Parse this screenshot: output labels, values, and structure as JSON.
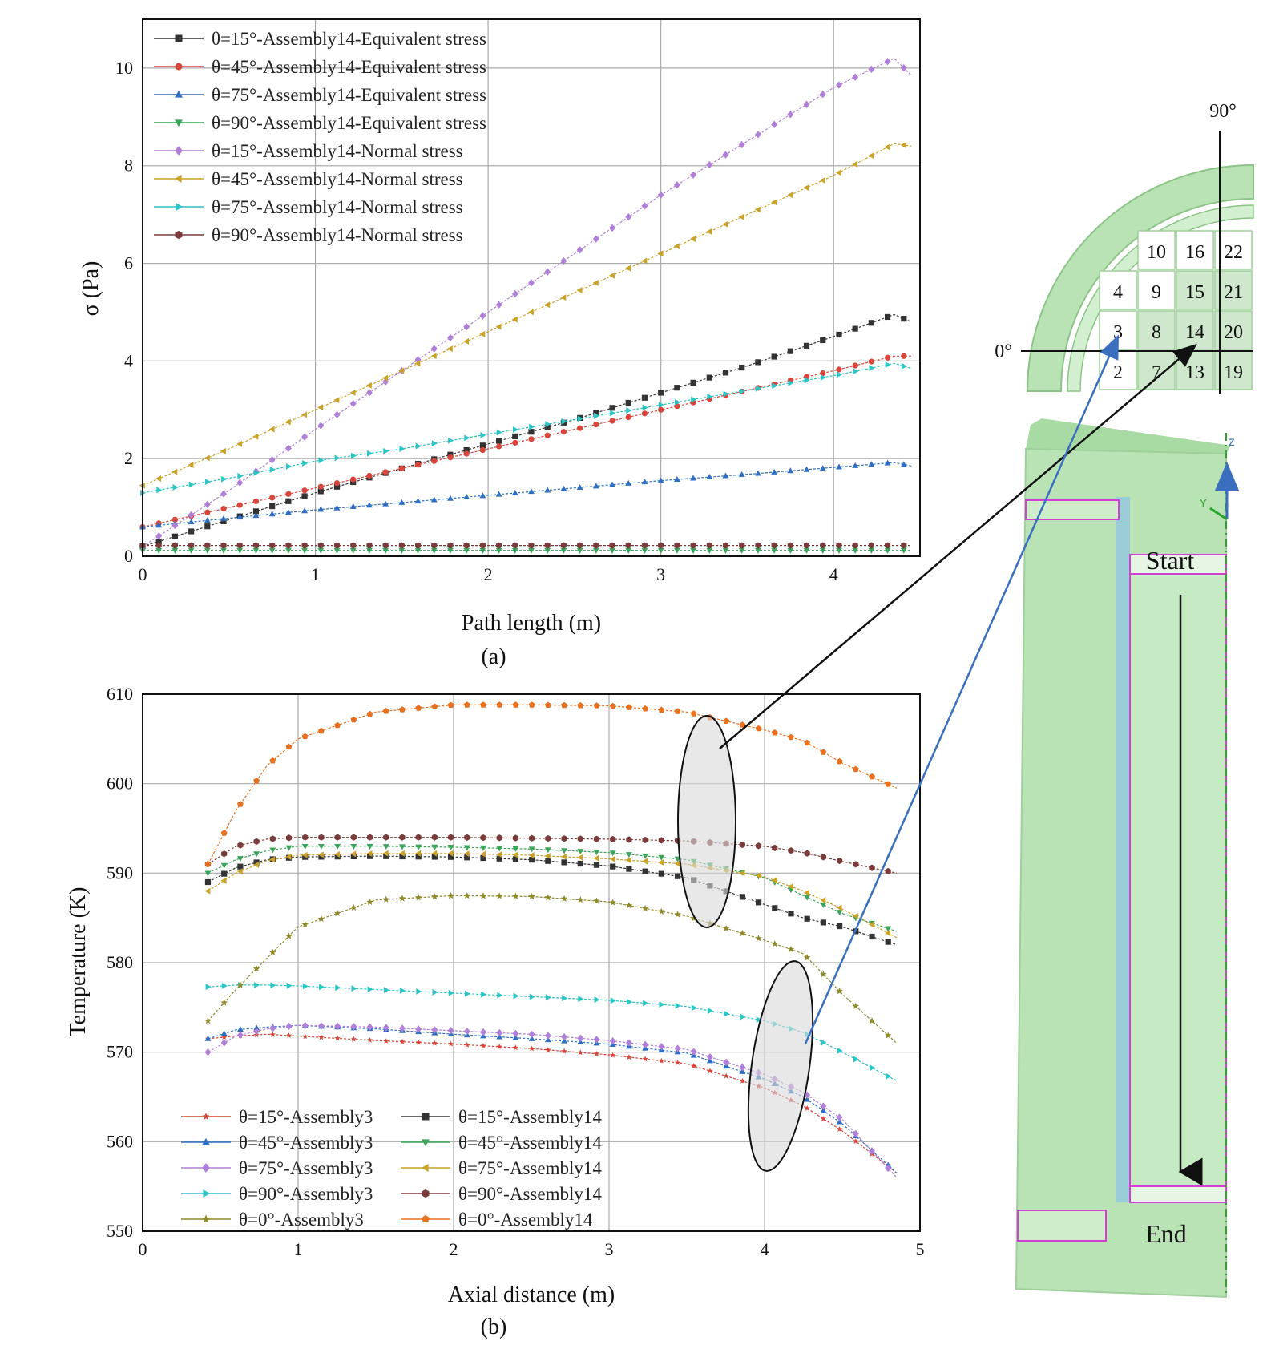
{
  "chart_data": [
    {
      "type": "line",
      "panel_label": "(a)",
      "xlabel": "Path length (m)",
      "ylabel": "σ (Pa)",
      "xlim": [
        0,
        4.5
      ],
      "ylim": [
        0,
        11
      ],
      "xticks": [
        "0",
        "1",
        "2",
        "3",
        "4"
      ],
      "yticks": [
        "0",
        "2",
        "4",
        "6",
        "8",
        "10"
      ],
      "grid": true,
      "legend_position": "top-left",
      "x": [
        0,
        0.5,
        1,
        1.5,
        2,
        2.5,
        3,
        3.5,
        4,
        4.35,
        4.45
      ],
      "series": [
        {
          "name": "θ=15°-Assembly14-Equivalent stress",
          "marker": "square",
          "color": "#333333",
          "values": [
            0.2,
            0.75,
            1.3,
            1.8,
            2.3,
            2.8,
            3.35,
            3.9,
            4.5,
            4.95,
            4.8
          ]
        },
        {
          "name": "θ=45°-Assembly14-Equivalent stress",
          "marker": "circle",
          "color": "#d9453a",
          "values": [
            0.6,
            1.0,
            1.4,
            1.8,
            2.2,
            2.6,
            3.0,
            3.4,
            3.8,
            4.1,
            4.1
          ]
        },
        {
          "name": "θ=75°-Assembly14-Equivalent stress",
          "marker": "triangle-up",
          "color": "#2e6fc4",
          "values": [
            0.6,
            0.78,
            0.95,
            1.1,
            1.25,
            1.4,
            1.55,
            1.68,
            1.82,
            1.92,
            1.85
          ]
        },
        {
          "name": "θ=90°-Assembly14-Equivalent stress",
          "marker": "triangle-down",
          "color": "#3aa55a",
          "values": [
            0.12,
            0.12,
            0.12,
            0.12,
            0.12,
            0.12,
            0.12,
            0.12,
            0.12,
            0.12,
            0.12
          ]
        },
        {
          "name": "θ=15°-Assembly14-Normal stress",
          "marker": "diamond",
          "color": "#b07fd8",
          "values": [
            0.2,
            1.35,
            2.6,
            3.8,
            5.0,
            6.2,
            7.4,
            8.5,
            9.6,
            10.2,
            9.85
          ]
        },
        {
          "name": "θ=45°-Assembly14-Normal stress",
          "marker": "triangle-left",
          "color": "#c9a227",
          "values": [
            1.45,
            2.2,
            3.0,
            3.8,
            4.6,
            5.4,
            6.2,
            7.0,
            7.8,
            8.45,
            8.4
          ]
        },
        {
          "name": "θ=75°-Assembly14-Normal stress",
          "marker": "triangle-right",
          "color": "#2cc4c4",
          "values": [
            1.3,
            1.6,
            1.95,
            2.2,
            2.5,
            2.8,
            3.1,
            3.4,
            3.7,
            3.95,
            3.85
          ]
        },
        {
          "name": "θ=90°-Assembly14-Normal stress",
          "marker": "hexagon",
          "color": "#7a3b3b",
          "values": [
            0.22,
            0.22,
            0.22,
            0.22,
            0.22,
            0.22,
            0.22,
            0.22,
            0.22,
            0.22,
            0.22
          ]
        }
      ]
    },
    {
      "type": "line",
      "panel_label": "(b)",
      "xlabel": "Axial distance (m)",
      "ylabel": "Temperature (K)",
      "xlim": [
        0,
        5
      ],
      "ylim": [
        550,
        610
      ],
      "xticks": [
        "0",
        "1",
        "2",
        "3",
        "4",
        "5"
      ],
      "yticks": [
        "550",
        "560",
        "570",
        "580",
        "590",
        "600",
        "610"
      ],
      "grid": true,
      "legend_position": "bottom-left",
      "x": [
        0.42,
        0.6,
        0.8,
        1.0,
        1.5,
        2.0,
        2.5,
        3.0,
        3.5,
        4.0,
        4.25,
        4.5,
        4.85
      ],
      "series": [
        {
          "name": "θ=15°-Assembly3",
          "marker": "star-small",
          "color": "#d9453a",
          "values": [
            571.5,
            571.8,
            572.0,
            571.8,
            571.3,
            570.9,
            570.4,
            569.7,
            568.7,
            566.0,
            564.0,
            561.2,
            556.5
          ]
        },
        {
          "name": "θ=15°-Assembly14",
          "marker": "square",
          "color": "#333333",
          "values": [
            589.0,
            590.6,
            591.5,
            591.8,
            591.9,
            591.8,
            591.5,
            590.8,
            589.5,
            586.5,
            585.0,
            584.0,
            582.0
          ]
        },
        {
          "name": "θ=45°-Assembly3",
          "marker": "triangle-up",
          "color": "#2e6fc4",
          "values": [
            571.5,
            572.5,
            572.8,
            573.0,
            572.6,
            572.0,
            571.5,
            570.9,
            569.9,
            567.0,
            565.0,
            562.0,
            556.5
          ]
        },
        {
          "name": "θ=45°-Assembly14",
          "marker": "triangle-down",
          "color": "#3aa55a",
          "values": [
            590.0,
            591.5,
            592.5,
            593.0,
            593.0,
            592.9,
            592.7,
            592.3,
            591.5,
            589.5,
            587.5,
            585.5,
            583.5
          ]
        },
        {
          "name": "θ=75°-Assembly3",
          "marker": "diamond",
          "color": "#b07fd8",
          "values": [
            570.0,
            571.8,
            572.6,
            573.0,
            572.8,
            572.4,
            572.0,
            571.3,
            570.3,
            567.5,
            565.5,
            562.5,
            556.0
          ]
        },
        {
          "name": "θ=75°-Assembly14",
          "marker": "triangle-left",
          "color": "#c9a227",
          "values": [
            588.0,
            590.0,
            591.4,
            592.0,
            592.2,
            592.2,
            592.0,
            591.6,
            591.0,
            589.6,
            588.0,
            586.0,
            582.8
          ]
        },
        {
          "name": "θ=90°-Assembly3",
          "marker": "triangle-right",
          "color": "#2cc4c4",
          "values": [
            577.3,
            577.5,
            577.5,
            577.4,
            577.0,
            576.6,
            576.2,
            575.8,
            575.1,
            573.5,
            572.2,
            570.0,
            566.8
          ]
        },
        {
          "name": "θ=90°-Assembly14",
          "marker": "hexagon",
          "color": "#7a3b3b",
          "values": [
            591.0,
            593.0,
            593.8,
            594.0,
            594.0,
            594.0,
            593.9,
            593.8,
            593.6,
            593.0,
            592.3,
            591.3,
            590.0
          ]
        },
        {
          "name": "θ=0°-Assembly3",
          "marker": "star",
          "color": "#8f8a2a",
          "values": [
            573.5,
            577.0,
            580.5,
            584.0,
            587.0,
            587.5,
            587.4,
            586.8,
            585.2,
            582.5,
            581.0,
            576.5,
            571.0
          ]
        },
        {
          "name": "θ=0°-Assembly14",
          "marker": "pentagon",
          "color": "#e8711f",
          "values": [
            591.0,
            597.0,
            602.0,
            605.0,
            608.0,
            608.8,
            608.8,
            608.7,
            608.0,
            606.0,
            604.8,
            602.3,
            599.5
          ]
        }
      ]
    }
  ],
  "schematic": {
    "angle_90_label": "90°",
    "angle_0_label": "0°",
    "grid_cells": [
      "10",
      "16",
      "22",
      "4",
      "9",
      "15",
      "21",
      "3",
      "8",
      "14",
      "20",
      "2",
      "7",
      "13",
      "19"
    ],
    "axis_z_label": "z",
    "axis_y_label": "Y",
    "start_label": "Start",
    "end_label": "End",
    "colors": {
      "block": "#b9e3b4",
      "block_dark": "#9fd39b",
      "edge": "#d43ed6",
      "arrow_black": "#111111",
      "arrow_blue": "#3a6fbf"
    }
  }
}
